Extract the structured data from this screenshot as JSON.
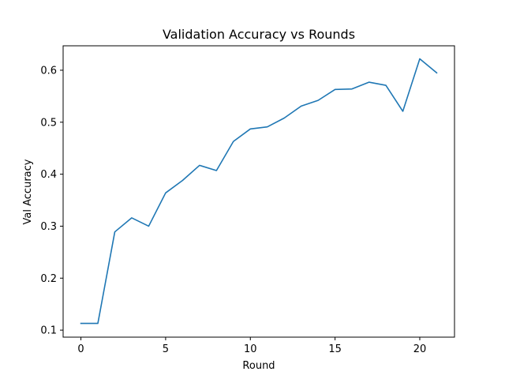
{
  "chart_data": {
    "type": "line",
    "title": "Validation Accuracy vs Rounds",
    "xlabel": "Round",
    "ylabel": "Val Accuracy",
    "xlim": [
      -1.05,
      22.05
    ],
    "ylim": [
      0.0865,
      0.647
    ],
    "xticks": [
      0,
      5,
      10,
      15,
      20
    ],
    "yticks": [
      0.1,
      0.2,
      0.3,
      0.4,
      0.5,
      0.6
    ],
    "grid": false,
    "legend": "none",
    "series": [
      {
        "color": "#1f77b4",
        "x": [
          0,
          1,
          2,
          3,
          4,
          5,
          6,
          7,
          8,
          9,
          10,
          11,
          12,
          13,
          14,
          15,
          16,
          17,
          18,
          19,
          20,
          21
        ],
        "y": [
          0.113,
          0.113,
          0.289,
          0.316,
          0.3,
          0.364,
          0.388,
          0.417,
          0.407,
          0.463,
          0.487,
          0.491,
          0.508,
          0.531,
          0.542,
          0.563,
          0.564,
          0.577,
          0.571,
          0.521,
          0.622,
          0.595
        ]
      }
    ]
  }
}
